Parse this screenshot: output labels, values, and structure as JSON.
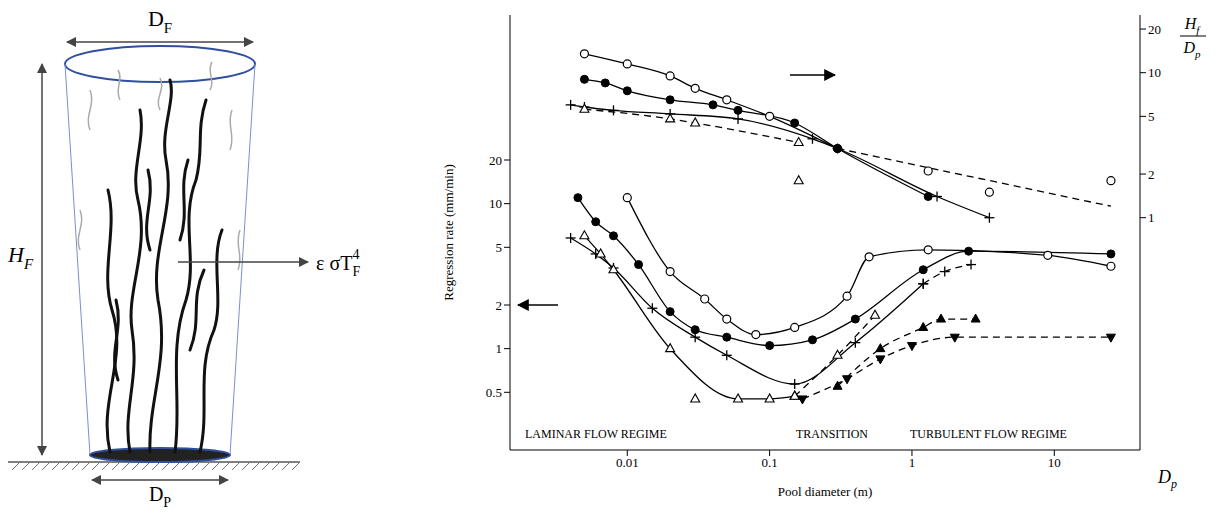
{
  "diagram": {
    "labels": {
      "flame_diameter": {
        "base": "D",
        "sub": "F"
      },
      "flame_height": {
        "base": "H",
        "sub": "F"
      },
      "pool_diameter": {
        "base": "D",
        "sub": "P"
      },
      "radiation": {
        "base": "ε σT",
        "sub": "F",
        "sup": "4"
      }
    }
  },
  "chart_data": {
    "type": "line",
    "x_label": "Pool diameter (m)",
    "y_label": "Regression rate (mm/min)",
    "x_symbol": {
      "base": "D",
      "sub": "p"
    },
    "y2_label": {
      "numerator": {
        "base": "H",
        "sub": "f"
      },
      "denominator": {
        "base": "D",
        "sub": "p"
      }
    },
    "annotations": [
      "LAMINAR FLOW REGIME",
      "TRANSITION",
      "TURBULENT FLOW REGIME"
    ],
    "log": true,
    "grid": false,
    "xlim": [
      0.0015,
      40
    ],
    "xticks": [
      0.01,
      0.1,
      1,
      10
    ],
    "ylim": [
      0.2,
      200
    ],
    "yticks": [
      0.5,
      1,
      2,
      5,
      10,
      20
    ],
    "y2lim": [
      0.025,
      25
    ],
    "y2ticks": [
      1,
      2,
      5,
      10,
      20
    ],
    "series": [
      {
        "axis": "y",
        "marker": "circle_open",
        "line_style": "solid",
        "color": "#000000",
        "x": [
          0.01,
          0.02,
          0.035,
          0.05,
          0.08,
          0.15,
          0.35,
          0.5,
          1.3,
          9,
          25
        ],
        "values": [
          11,
          3.4,
          2.2,
          1.6,
          1.25,
          1.4,
          2.3,
          4.3,
          4.8,
          4.4,
          3.7
        ]
      },
      {
        "axis": "y",
        "marker": "circle_filled",
        "line_style": "solid",
        "color": "#000000",
        "x": [
          0.0045,
          0.006,
          0.008,
          0.012,
          0.02,
          0.03,
          0.05,
          0.1,
          0.2,
          0.4,
          1.2,
          2.5,
          25
        ],
        "values": [
          11,
          7.5,
          6,
          3.8,
          1.8,
          1.35,
          1.2,
          1.05,
          1.15,
          1.6,
          3.5,
          4.7,
          4.5
        ]
      },
      {
        "axis": "y",
        "marker": "plus",
        "line_style": "solid",
        "color": "#000000",
        "x": [
          0.004,
          0.006,
          0.008,
          0.015,
          0.03,
          0.05,
          0.15,
          0.4,
          1.2
        ],
        "values": [
          5.8,
          4.5,
          3.6,
          1.9,
          1.2,
          0.9,
          0.57,
          1.1,
          2.8
        ]
      },
      {
        "axis": "y",
        "marker": "plus",
        "line_style": "dashed",
        "color": "#000000",
        "x": [
          1.2,
          1.7,
          2.6
        ],
        "values": [
          2.8,
          3.4,
          3.8
        ]
      },
      {
        "axis": "y",
        "marker": "triangle_open",
        "line_style": "solid",
        "color": "#000000",
        "x": [
          0.005,
          0.0065,
          0.008,
          0.02,
          0.06,
          0.1,
          0.15
        ],
        "values": [
          6,
          4.5,
          3.5,
          1.0,
          0.45,
          0.45,
          0.47
        ]
      },
      {
        "axis": "y",
        "marker": "triangle_open",
        "line_style": "none",
        "color": "#000000",
        "x": [
          0.03
        ],
        "values": [
          0.45
        ]
      },
      {
        "axis": "y",
        "marker": "triangle_open",
        "line_style": "dashed",
        "color": "#000000",
        "x": [
          0.15,
          0.3,
          0.55
        ],
        "values": [
          0.47,
          0.9,
          1.7
        ]
      },
      {
        "axis": "y",
        "marker": "triangle_filled",
        "line_style": "dashed",
        "color": "#000000",
        "x": [
          0.3,
          0.6,
          1.2,
          1.6,
          2.8
        ],
        "values": [
          0.55,
          1.0,
          1.4,
          1.6,
          1.6
        ]
      },
      {
        "axis": "y",
        "marker": "triangle_down_filled",
        "line_style": "dashed",
        "color": "#000000",
        "x": [
          0.17,
          0.35,
          0.6,
          1.0,
          2.0,
          25
        ],
        "values": [
          0.45,
          0.62,
          0.85,
          1.05,
          1.2,
          1.2
        ]
      },
      {
        "axis": "y2",
        "marker": "circle_open",
        "line_style": "solid",
        "color": "#000000",
        "x": [
          0.005,
          0.01,
          0.02,
          0.03,
          0.05,
          0.1,
          0.3
        ],
        "values": [
          13.5,
          11.5,
          9.5,
          7.8,
          6.5,
          5,
          3
        ]
      },
      {
        "axis": "y2",
        "marker": "none",
        "line_style": "dashed",
        "color": "#000000",
        "x": [
          0.3,
          25
        ],
        "values": [
          3,
          1.2
        ]
      },
      {
        "axis": "y2",
        "marker": "circle_open",
        "line_style": "none",
        "color": "#000000",
        "x": [
          1.3,
          3.5,
          25
        ],
        "values": [
          2.1,
          1.5,
          1.8
        ]
      },
      {
        "axis": "y2",
        "marker": "circle_filled",
        "line_style": "solid",
        "color": "#000000",
        "x": [
          0.005,
          0.007,
          0.01,
          0.02,
          0.04,
          0.06,
          0.15,
          0.3,
          1.3
        ],
        "values": [
          9,
          8.5,
          7.5,
          6.5,
          6,
          5.5,
          4.5,
          3,
          1.4
        ]
      },
      {
        "axis": "y2",
        "marker": "plus",
        "line_style": "solid",
        "color": "#000000",
        "x": [
          0.004,
          0.005,
          0.008,
          0.02,
          0.06,
          0.2,
          0.3,
          1.5,
          3.5
        ],
        "values": [
          6,
          5.8,
          5.5,
          5.2,
          4.8,
          3.5,
          3,
          1.4,
          1
        ]
      },
      {
        "axis": "y2",
        "marker": "triangle_open",
        "line_style": "dashed",
        "color": "#000000",
        "x": [
          0.005,
          0.02,
          0.03,
          0.16
        ],
        "values": [
          5.6,
          4.8,
          4.5,
          3.3
        ]
      },
      {
        "axis": "y2",
        "marker": "triangle_open",
        "line_style": "none",
        "color": "#000000",
        "x": [
          0.16
        ],
        "values": [
          1.8
        ]
      }
    ]
  }
}
